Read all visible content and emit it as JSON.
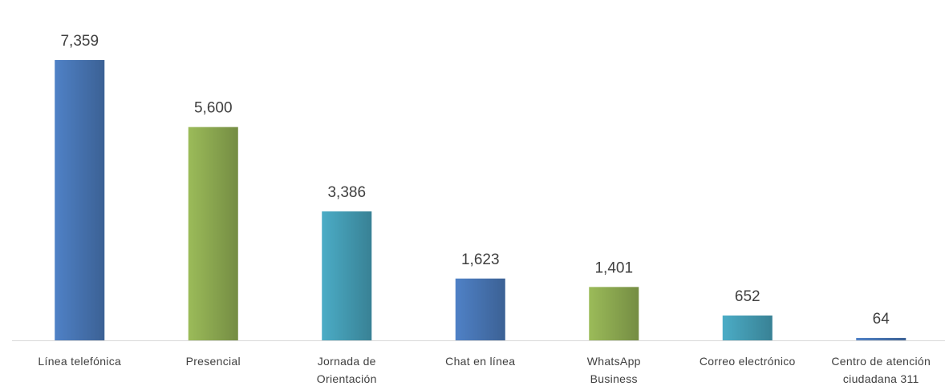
{
  "chart_data": {
    "type": "bar",
    "categories": [
      "Línea telefónica",
      "Presencial",
      "Jornada de Orientación",
      "Chat en línea",
      "WhatsApp Business",
      "Correo electrónico",
      "Centro de atención ciudadana 311"
    ],
    "values": [
      7359,
      5600,
      3386,
      1623,
      1401,
      652,
      64
    ],
    "value_labels": [
      "7,359",
      "5,600",
      "3,386",
      "1,623",
      "1,401",
      "652",
      "64"
    ],
    "colors": [
      "#4f81c6",
      "#9bbb59",
      "#4bacc6",
      "#4f81c6",
      "#9bbb59",
      "#4bacc6",
      "#4f81c6"
    ]
  }
}
